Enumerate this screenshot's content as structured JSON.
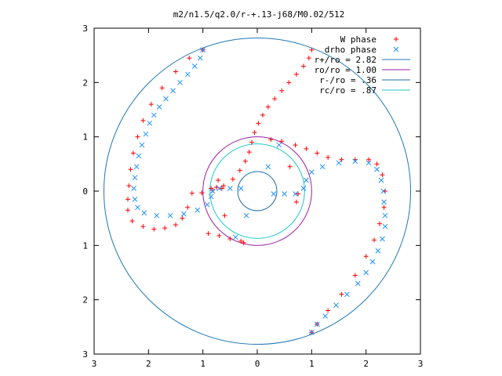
{
  "chart_data": {
    "type": "scatter",
    "title": "m2/n1.5/q2.0/r-+.13-j68/M0.02/512",
    "xlabel": "",
    "ylabel": "",
    "xlim": [
      -3,
      3
    ],
    "ylim": [
      -3,
      3
    ],
    "x_ticks": [
      -3,
      -2,
      -1,
      0,
      1,
      2,
      3
    ],
    "y_ticks": [
      3,
      2,
      1,
      0,
      -1,
      -2,
      -3
    ],
    "x_tick_labels": [
      "3",
      "2",
      "1",
      "0",
      "1",
      "2",
      "3"
    ],
    "y_tick_labels": [
      "3",
      "2",
      "1",
      "0",
      "1",
      "2",
      "3"
    ],
    "grid": false,
    "legend_position": "top-right",
    "series": [
      {
        "name": "W phase",
        "marker": "+",
        "color": "#ff0000",
        "points": [
          [
            1.0,
            2.6
          ],
          [
            0.95,
            2.45
          ],
          [
            0.85,
            2.3
          ],
          [
            0.72,
            2.15
          ],
          [
            0.58,
            2.0
          ],
          [
            0.45,
            1.85
          ],
          [
            0.32,
            1.7
          ],
          [
            0.2,
            1.55
          ],
          [
            0.1,
            1.4
          ],
          [
            0.02,
            1.25
          ],
          [
            -0.05,
            1.08
          ],
          [
            -0.1,
            0.9
          ],
          [
            -0.15,
            0.72
          ],
          [
            -0.22,
            0.55
          ],
          [
            -0.32,
            0.38
          ],
          [
            -0.45,
            0.22
          ],
          [
            -0.62,
            0.1
          ],
          [
            -0.82,
            0.02
          ],
          [
            -1.02,
            -0.03
          ],
          [
            -1.2,
            -0.04
          ],
          [
            -1.28,
            -0.3
          ],
          [
            -1.38,
            -0.5
          ],
          [
            -1.5,
            -0.62
          ],
          [
            -1.7,
            -0.68
          ],
          [
            -1.9,
            -0.7
          ],
          [
            -2.1,
            -0.65
          ],
          [
            -2.3,
            -0.55
          ],
          [
            -2.38,
            -0.35
          ],
          [
            -2.38,
            -0.15
          ],
          [
            -2.36,
            0.1
          ],
          [
            -2.33,
            0.4
          ],
          [
            -2.28,
            0.7
          ],
          [
            -2.2,
            1.0
          ],
          [
            -2.1,
            1.3
          ],
          [
            -1.95,
            1.6
          ],
          [
            -1.75,
            1.9
          ],
          [
            -1.5,
            2.2
          ],
          [
            -1.25,
            2.45
          ],
          [
            -1.0,
            2.6
          ],
          [
            0.25,
            0.95
          ],
          [
            0.45,
            0.92
          ],
          [
            0.7,
            0.85
          ],
          [
            0.9,
            0.78
          ],
          [
            1.1,
            0.7
          ],
          [
            1.3,
            0.62
          ],
          [
            1.55,
            0.58
          ],
          [
            1.8,
            0.58
          ],
          [
            2.05,
            0.58
          ],
          [
            2.2,
            0.5
          ],
          [
            2.3,
            0.3
          ],
          [
            2.35,
            0.0
          ],
          [
            2.33,
            -0.3
          ],
          [
            2.25,
            -0.6
          ],
          [
            2.15,
            -0.9
          ],
          [
            2.0,
            -1.2
          ],
          [
            1.8,
            -1.55
          ],
          [
            1.55,
            -1.9
          ],
          [
            1.3,
            -2.2
          ],
          [
            1.1,
            -2.45
          ],
          [
            1.0,
            -2.6
          ],
          [
            -0.9,
            -0.78
          ],
          [
            -0.7,
            -0.82
          ],
          [
            -0.5,
            -0.88
          ],
          [
            -0.3,
            -0.92
          ],
          [
            -0.25,
            -0.95
          ],
          [
            -0.85,
            0.05
          ],
          [
            -0.75,
            0.07
          ],
          [
            -0.65,
            0.05
          ],
          [
            0.75,
            -0.05
          ],
          [
            0.72,
            -0.2
          ],
          [
            -0.72,
            0.2
          ],
          [
            -0.6,
            -0.45
          ],
          [
            0.6,
            0.45
          ]
        ]
      },
      {
        "name": "drho phase",
        "marker": "x",
        "color": "#1e90ff",
        "points": [
          [
            -1.0,
            2.6
          ],
          [
            -1.05,
            2.45
          ],
          [
            -1.15,
            2.3
          ],
          [
            -1.28,
            2.15
          ],
          [
            -1.42,
            2.0
          ],
          [
            -1.55,
            1.85
          ],
          [
            -1.68,
            1.7
          ],
          [
            -1.8,
            1.55
          ],
          [
            -1.9,
            1.4
          ],
          [
            -1.98,
            1.25
          ],
          [
            -2.05,
            1.05
          ],
          [
            -2.12,
            0.85
          ],
          [
            -2.18,
            0.65
          ],
          [
            -2.22,
            0.45
          ],
          [
            -2.25,
            0.25
          ],
          [
            -2.27,
            0.05
          ],
          [
            -2.25,
            -0.15
          ],
          [
            -2.2,
            -0.3
          ],
          [
            -2.08,
            -0.4
          ],
          [
            -1.85,
            -0.45
          ],
          [
            -1.6,
            -0.45
          ],
          [
            -1.35,
            -0.42
          ],
          [
            -1.1,
            -0.35
          ],
          [
            -0.92,
            -0.25
          ],
          [
            -0.85,
            -0.1
          ],
          [
            -0.82,
            0.0
          ],
          [
            -0.7,
            0.05
          ],
          [
            -0.5,
            0.05
          ],
          [
            -0.3,
            0.05
          ],
          [
            0.3,
            -0.05
          ],
          [
            0.5,
            -0.05
          ],
          [
            0.7,
            -0.05
          ],
          [
            0.85,
            0.05
          ],
          [
            0.9,
            0.2
          ],
          [
            1.0,
            0.35
          ],
          [
            1.2,
            0.45
          ],
          [
            1.5,
            0.52
          ],
          [
            1.8,
            0.55
          ],
          [
            2.05,
            0.52
          ],
          [
            2.2,
            0.4
          ],
          [
            2.28,
            0.2
          ],
          [
            2.32,
            0.0
          ],
          [
            2.33,
            -0.2
          ],
          [
            2.35,
            -0.45
          ],
          [
            2.35,
            -0.65
          ],
          [
            2.3,
            -0.88
          ],
          [
            2.22,
            -1.1
          ],
          [
            2.12,
            -1.3
          ],
          [
            2.0,
            -1.5
          ],
          [
            1.85,
            -1.7
          ],
          [
            1.65,
            -1.9
          ],
          [
            1.45,
            -2.1
          ],
          [
            1.25,
            -2.3
          ],
          [
            1.1,
            -2.45
          ],
          [
            1.0,
            -2.6
          ],
          [
            0.2,
            0.45
          ],
          [
            0.4,
            0.85
          ],
          [
            -0.4,
            -0.85
          ],
          [
            -0.2,
            -0.45
          ]
        ]
      }
    ],
    "circles": [
      {
        "label": "r+/ro = 2.82",
        "radius": 2.82,
        "color": "#1f78b4"
      },
      {
        "label": "ro/ro = 1.00",
        "radius": 1.0,
        "color": "#9b1fa6"
      },
      {
        "label": "r-/ro = .36",
        "radius": 0.36,
        "color": "#1f6ea8"
      },
      {
        "label": "rc/ro = .87",
        "radius": 0.87,
        "color": "#1fc8c8"
      }
    ]
  }
}
